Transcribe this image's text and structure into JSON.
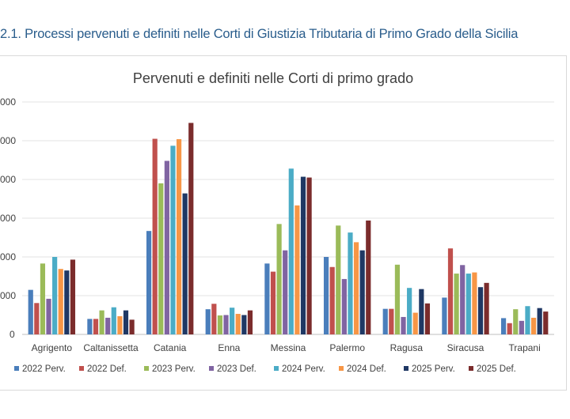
{
  "caption": "2.1. Processi pervenuti e definiti nelle Corti di Giustizia Tributaria di Primo Grado della Sicilia",
  "chart_data": {
    "type": "bar",
    "title": "Pervenuti e definiti nelle Corti di primo grado",
    "xlabel": "",
    "ylabel": "",
    "ylim": [
      0,
      6000
    ],
    "yticks": [
      "000",
      "000",
      "000",
      "000",
      "000",
      "000",
      "0"
    ],
    "grid": true,
    "legend": "bottom",
    "categories": [
      "Agrigento",
      "Caltanissetta",
      "Catania",
      "Enna",
      "Messina",
      "Palermo",
      "Ragusa",
      "Siracusa",
      "Trapani"
    ],
    "series": [
      {
        "name": "2022 Perv.",
        "color": "#4a7ebb",
        "values": [
          1150,
          400,
          2670,
          650,
          1830,
          2000,
          660,
          950,
          420
        ]
      },
      {
        "name": "2022 Def.",
        "color": "#c0504d",
        "values": [
          810,
          400,
          5050,
          790,
          1620,
          1740,
          660,
          2220,
          290
        ]
      },
      {
        "name": "2023 Perv.",
        "color": "#9bbb59",
        "values": [
          1830,
          620,
          3900,
          490,
          2850,
          2810,
          1800,
          1570,
          650
        ]
      },
      {
        "name": "2023 Def.",
        "color": "#8064a2",
        "values": [
          920,
          430,
          4480,
          500,
          2170,
          1430,
          450,
          1790,
          350
        ]
      },
      {
        "name": "2024 Perv.",
        "color": "#4bacc6",
        "values": [
          2000,
          700,
          4870,
          690,
          4280,
          2630,
          1200,
          1570,
          730
        ]
      },
      {
        "name": "2024 Def.",
        "color": "#f79646",
        "values": [
          1690,
          470,
          5040,
          530,
          3330,
          2380,
          560,
          1600,
          430
        ]
      },
      {
        "name": "2025 Perv.",
        "color": "#1f3864",
        "values": [
          1650,
          620,
          3640,
          500,
          4070,
          2170,
          1170,
          1220,
          680
        ]
      },
      {
        "name": "2025 Def.",
        "color": "#7b2c2c",
        "values": [
          1930,
          380,
          5460,
          620,
          4050,
          2940,
          800,
          1330,
          590
        ]
      }
    ]
  }
}
